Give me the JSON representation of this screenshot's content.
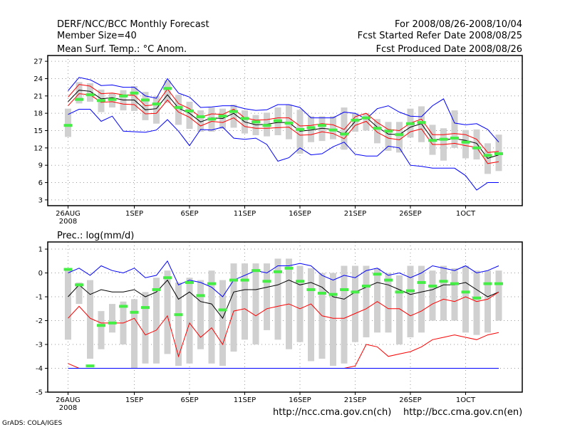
{
  "header": {
    "title": "DERF/NCC/BCC Monthly Forecast",
    "member_size": "Member Size=40",
    "period": "For 2008/08/26-2008/10/04",
    "refer_date": "Fcst Started Refer Date 2008/08/25",
    "produced_date": "Fcst Produced Date 2008/08/26"
  },
  "footer": {
    "ncc_url": "http://ncc.cma.gov.cn(ch)",
    "bcc_url": "http://bcc.cma.gov.cn(en)",
    "credit": "GrADS: COLA/IGES"
  },
  "colors": {
    "mean": "#000000",
    "extreme": "#0000ff",
    "spread": "#ff0000",
    "box": "#d0d0d0",
    "median": "#44ee44",
    "grid": "#999999"
  },
  "chart_data": [
    {
      "type": "line",
      "title": "Mean Surf. Temp.: °C Anom.",
      "x_tick_labels": [
        "26AUG",
        "1SEP",
        "6SEP",
        "11SEP",
        "16SEP",
        "21SEP",
        "26SEP",
        "1OCT"
      ],
      "x_year_label": "2008",
      "ylim": [
        2,
        28
      ],
      "yticks": [
        "3",
        "6",
        "9",
        "12",
        "15",
        "18",
        "21",
        "24",
        "27"
      ],
      "x": [
        26,
        27,
        28,
        29,
        30,
        31,
        32,
        33,
        34,
        35,
        36,
        37,
        38,
        39,
        40,
        41,
        42,
        43,
        44,
        45,
        46,
        47,
        48,
        49,
        50,
        51,
        52,
        53,
        54,
        55,
        56,
        57,
        58,
        59,
        60,
        61,
        62,
        63,
        64,
        65
      ],
      "series": [
        {
          "name": "max",
          "color": "blue",
          "values": [
            21.9,
            24.2,
            23.8,
            22.8,
            22.9,
            22.5,
            22.5,
            21.0,
            20.6,
            24.0,
            21.5,
            20.8,
            19.0,
            19.1,
            19.3,
            19.3,
            18.8,
            18.5,
            18.6,
            19.5,
            19.5,
            19.0,
            17.2,
            17.2,
            17.2,
            18.2,
            18.0,
            17.0,
            18.8,
            19.3,
            18.2,
            17.5,
            17.4,
            19.3,
            20.5,
            16.3,
            16.0,
            16.2,
            15.2,
            13.0
          ]
        },
        {
          "name": "upper",
          "color": "red",
          "values": [
            20.8,
            23.0,
            22.7,
            21.4,
            21.5,
            21.2,
            21.1,
            19.3,
            19.5,
            22.2,
            19.7,
            18.8,
            17.3,
            17.9,
            17.8,
            18.7,
            17.2,
            16.8,
            16.9,
            17.2,
            17.2,
            15.8,
            15.9,
            16.2,
            16.0,
            15.2,
            17.4,
            18.0,
            16.4,
            15.2,
            15.0,
            16.3,
            17.0,
            14.3,
            14.3,
            14.5,
            14.3,
            13.5,
            11.2,
            11.4
          ]
        },
        {
          "name": "mean",
          "color": "black",
          "values": [
            20.0,
            22.0,
            21.8,
            20.5,
            20.7,
            20.3,
            20.3,
            18.6,
            18.8,
            21.2,
            18.9,
            18.0,
            16.5,
            17.2,
            17.1,
            18.0,
            16.5,
            16.0,
            16.1,
            16.4,
            16.4,
            14.9,
            15.1,
            15.4,
            15.2,
            14.4,
            16.6,
            17.3,
            15.6,
            14.4,
            14.3,
            15.6,
            16.2,
            13.5,
            13.4,
            13.6,
            13.3,
            12.8,
            10.2,
            10.8
          ]
        },
        {
          "name": "lower",
          "color": "red",
          "values": [
            19.3,
            21.4,
            21.2,
            19.9,
            20.0,
            19.6,
            19.5,
            17.9,
            18.0,
            20.3,
            18.2,
            17.3,
            15.8,
            16.6,
            16.4,
            17.2,
            15.7,
            15.4,
            15.4,
            15.5,
            15.6,
            14.2,
            14.3,
            14.8,
            14.5,
            13.6,
            15.9,
            16.6,
            14.7,
            13.7,
            13.4,
            14.8,
            15.3,
            12.6,
            12.6,
            12.8,
            12.4,
            12.1,
            9.3,
            9.6
          ]
        },
        {
          "name": "min",
          "color": "blue",
          "values": [
            17.8,
            18.7,
            18.7,
            16.6,
            17.5,
            14.9,
            14.8,
            14.7,
            15.1,
            16.9,
            14.9,
            12.4,
            15.2,
            15.1,
            15.6,
            13.7,
            13.5,
            13.7,
            12.6,
            9.7,
            10.3,
            12.0,
            10.8,
            11.0,
            12.2,
            13.0,
            10.9,
            10.6,
            10.6,
            12.3,
            12.0,
            9.0,
            8.8,
            8.5,
            8.5,
            8.5,
            7.2,
            4.7,
            6.0,
            6.0
          ]
        }
      ],
      "boxes": {
        "low": [
          13.9,
          19.7,
          20.0,
          18.2,
          19.0,
          18.5,
          18.4,
          16.8,
          16.2,
          19.8,
          16.0,
          15.3,
          14.8,
          14.8,
          15.3,
          15.5,
          14.5,
          14.2,
          14.0,
          14.2,
          13.5,
          11.0,
          13.0,
          13.2,
          13.5,
          11.7,
          14.8,
          15.0,
          12.8,
          11.5,
          11.2,
          13.8,
          13.0,
          10.8,
          9.8,
          12.0,
          10.2,
          10.0,
          7.5,
          8.0
        ],
        "high": [
          18.8,
          23.4,
          23.2,
          22.1,
          21.5,
          22.0,
          22.7,
          21.7,
          21.0,
          23.7,
          21.2,
          20.0,
          18.5,
          19.0,
          18.8,
          19.5,
          18.5,
          17.7,
          18.1,
          19.0,
          19.5,
          18.6,
          17.5,
          17.5,
          17.5,
          19.0,
          18.0,
          18.0,
          17.0,
          16.5,
          16.5,
          18.8,
          19.2,
          16.0,
          15.4,
          18.5,
          15.1,
          15.2,
          12.8,
          14.3
        ],
        "median": [
          15.9,
          20.4,
          21.2,
          20.2,
          20.4,
          21.0,
          21.5,
          20.3,
          19.6,
          22.3,
          19.0,
          18.4,
          17.4,
          17.0,
          17.5,
          18.3,
          17.1,
          16.5,
          15.9,
          16.7,
          16.3,
          15.2,
          15.5,
          15.9,
          15.1,
          14.4,
          16.8,
          17.2,
          15.4,
          14.9,
          14.3,
          16.2,
          16.4,
          13.3,
          13.5,
          13.7,
          13.0,
          12.0,
          10.7,
          11.0
        ]
      }
    },
    {
      "type": "line",
      "title": "Prec.: log(mm/d)",
      "x_tick_labels": [
        "26AUG",
        "1SEP",
        "6SEP",
        "11SEP",
        "16SEP",
        "21SEP",
        "26SEP",
        "1OCT"
      ],
      "x_year_label": "2008",
      "ylim": [
        -5,
        1.3
      ],
      "yticks": [
        "-5",
        "-4",
        "-3",
        "-2",
        "-1",
        "0",
        "1"
      ],
      "x": [
        26,
        27,
        28,
        29,
        30,
        31,
        32,
        33,
        34,
        35,
        36,
        37,
        38,
        39,
        40,
        41,
        42,
        43,
        44,
        45,
        46,
        47,
        48,
        49,
        50,
        51,
        52,
        53,
        54,
        55,
        56,
        57,
        58,
        59,
        60,
        61,
        62,
        63,
        64,
        65
      ],
      "series": [
        {
          "name": "max",
          "color": "blue",
          "values": [
            0.0,
            0.2,
            -0.1,
            0.3,
            0.1,
            0.0,
            0.2,
            -0.2,
            -0.1,
            0.5,
            -0.5,
            -0.3,
            -0.4,
            -0.6,
            -1.0,
            -0.3,
            -0.1,
            0.1,
            0.0,
            0.3,
            0.3,
            0.4,
            0.3,
            -0.1,
            -0.3,
            -0.1,
            -0.2,
            0.1,
            0.2,
            -0.1,
            0.0,
            -0.2,
            0.0,
            0.3,
            0.2,
            0.1,
            0.3,
            0.0,
            0.1,
            0.3
          ]
        },
        {
          "name": "mean",
          "color": "black",
          "values": [
            -1.0,
            -0.5,
            -0.9,
            -0.7,
            -0.8,
            -0.8,
            -0.7,
            -1.0,
            -0.8,
            -0.3,
            -1.1,
            -0.8,
            -1.2,
            -1.3,
            -1.9,
            -0.8,
            -0.7,
            -0.7,
            -0.6,
            -0.5,
            -0.3,
            -0.5,
            -0.4,
            -0.6,
            -1.0,
            -1.1,
            -0.8,
            -0.6,
            -0.4,
            -0.5,
            -0.7,
            -0.9,
            -0.8,
            -0.7,
            -0.5,
            -0.5,
            -0.4,
            -0.7,
            -1.0,
            -0.8
          ]
        },
        {
          "name": "lower",
          "color": "red",
          "values": [
            -1.9,
            -1.4,
            -1.9,
            -2.1,
            -2.1,
            -2.1,
            -1.9,
            -2.6,
            -2.4,
            -1.8,
            -3.5,
            -2.1,
            -2.7,
            -2.3,
            -3.0,
            -1.6,
            -1.5,
            -1.8,
            -1.5,
            -1.4,
            -1.3,
            -1.5,
            -1.3,
            -1.8,
            -1.9,
            -1.9,
            -1.7,
            -1.5,
            -1.2,
            -1.5,
            -1.5,
            -1.8,
            -1.6,
            -1.3,
            -1.1,
            -1.2,
            -1.0,
            -1.2,
            -1.1,
            -0.8
          ]
        },
        {
          "name": "spread_low",
          "color": "red",
          "values": [
            -3.8,
            -4.0,
            -4.0,
            -4.0,
            -4.0,
            -4.0,
            -4.0,
            -4.0,
            -4.0,
            -4.0,
            -4.0,
            -4.0,
            -4.0,
            -4.0,
            -4.0,
            -4.0,
            -4.0,
            -4.0,
            -4.0,
            -4.0,
            -4.0,
            -4.0,
            -4.0,
            -4.0,
            -4.0,
            -4.0,
            -3.9,
            -3.0,
            -3.1,
            -3.5,
            -3.4,
            -3.3,
            -3.1,
            -2.8,
            -2.7,
            -2.6,
            -2.7,
            -2.8,
            -2.6,
            -2.5
          ]
        },
        {
          "name": "min",
          "color": "blue",
          "values": [
            -4.0,
            -4.0,
            -4.0,
            -4.0,
            -4.0,
            -4.0,
            -4.0,
            -4.0,
            -4.0,
            -4.0,
            -4.0,
            -4.0,
            -4.0,
            -4.0,
            -4.0,
            -4.0,
            -4.0,
            -4.0,
            -4.0,
            -4.0,
            -4.0,
            -4.0,
            -4.0,
            -4.0,
            -4.0,
            -4.0,
            -4.0,
            -4.0,
            -4.0,
            -4.0,
            -4.0,
            -4.0,
            -4.0,
            -4.0,
            -4.0,
            -4.0,
            -4.0,
            -4.0,
            -4.0,
            -4.0
          ]
        }
      ],
      "boxes": {
        "low": [
          -2.8,
          -1.3,
          -3.6,
          -3.2,
          -2.5,
          -3.0,
          -4.0,
          -3.8,
          -3.8,
          -3.4,
          -3.9,
          -3.8,
          -3.2,
          -3.8,
          -3.9,
          -3.3,
          -2.8,
          -3.0,
          -2.4,
          -2.8,
          -3.2,
          -2.9,
          -3.7,
          -3.6,
          -3.9,
          -3.8,
          -2.9,
          -2.7,
          -2.5,
          -2.5,
          -3.0,
          -2.7,
          -2.5,
          -2.0,
          -2.0,
          -2.0,
          -2.5,
          -2.6,
          -2.5,
          -2.0
        ],
        "high": [
          0.2,
          -0.4,
          -0.3,
          -1.6,
          -1.3,
          -1.2,
          -1.1,
          -0.8,
          -0.2,
          0.1,
          -0.4,
          -0.2,
          -0.3,
          0.1,
          -0.3,
          0.4,
          0.4,
          0.4,
          0.4,
          0.6,
          0.6,
          0.3,
          0.2,
          0.0,
          0.0,
          0.3,
          0.3,
          0.3,
          0.2,
          0.0,
          -0.1,
          0.3,
          0.3,
          0.1,
          0.3,
          0.2,
          0.3,
          0.1,
          0.1,
          0.1
        ]
      },
      "medians": [
        0.15,
        -0.5,
        -3.9,
        -2.2,
        -2.1,
        -1.4,
        -1.65,
        -1.45,
        -0.7,
        -0.2,
        -1.75,
        -0.4,
        -0.95,
        -0.45,
        -1.55,
        -0.3,
        -0.3,
        0.1,
        -0.35,
        0.05,
        0.2,
        -0.35,
        -0.7,
        -0.85,
        -0.9,
        -0.7,
        -0.8,
        -0.55,
        -0.05,
        -0.3,
        -0.8,
        -0.75,
        -0.4,
        -0.55,
        -0.35,
        -0.45,
        -0.8,
        -1.05,
        -0.45,
        -0.45
      ]
    }
  ]
}
